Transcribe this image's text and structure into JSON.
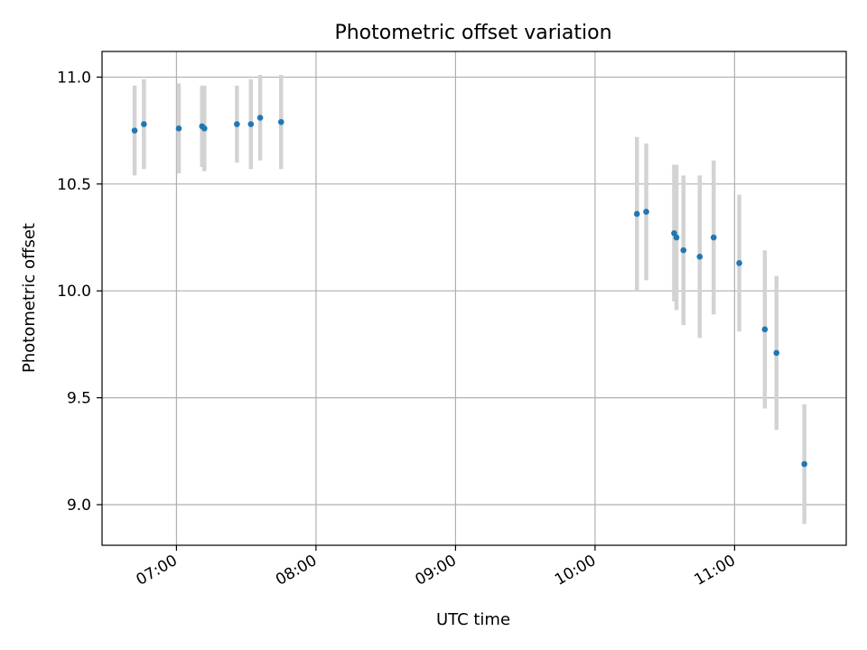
{
  "chart_data": {
    "type": "scatter",
    "title": "Photometric offset variation",
    "xlabel": "UTC time",
    "ylabel": "Photometric offset",
    "x_unit": "UTC time of day",
    "xlim": [
      "06:28",
      "11:48"
    ],
    "ylim": [
      8.81,
      11.12
    ],
    "grid": true,
    "x_ticks": [
      "07:00",
      "08:00",
      "09:00",
      "10:00",
      "11:00"
    ],
    "y_ticks": [
      "9.0",
      "9.5",
      "10.0",
      "10.5",
      "11.0"
    ],
    "y_tick_values": [
      9.0,
      9.5,
      10.0,
      10.5,
      11.0
    ],
    "colors": {
      "point": "#1f77b4",
      "errorbar": "#d3d3d3",
      "grid": "#b0b0b0"
    },
    "series": [
      {
        "points": [
          {
            "t": "06:42",
            "y": 10.75,
            "yerr": 0.21
          },
          {
            "t": "06:46",
            "y": 10.78,
            "yerr": 0.21
          },
          {
            "t": "07:01",
            "y": 10.76,
            "yerr": 0.21
          },
          {
            "t": "07:11",
            "y": 10.77,
            "yerr": 0.19
          },
          {
            "t": "07:12",
            "y": 10.76,
            "yerr": 0.2
          },
          {
            "t": "07:26",
            "y": 10.78,
            "yerr": 0.18
          },
          {
            "t": "07:32",
            "y": 10.78,
            "yerr": 0.21
          },
          {
            "t": "07:36",
            "y": 10.81,
            "yerr": 0.2
          },
          {
            "t": "07:45",
            "y": 10.79,
            "yerr": 0.22
          },
          {
            "t": "10:18",
            "y": 10.36,
            "yerr": 0.36
          },
          {
            "t": "10:22",
            "y": 10.37,
            "yerr": 0.32
          },
          {
            "t": "10:34",
            "y": 10.27,
            "yerr": 0.32
          },
          {
            "t": "10:35",
            "y": 10.25,
            "yerr": 0.34
          },
          {
            "t": "10:38",
            "y": 10.19,
            "yerr": 0.35
          },
          {
            "t": "10:45",
            "y": 10.16,
            "yerr": 0.38
          },
          {
            "t": "10:51",
            "y": 10.25,
            "yerr": 0.36
          },
          {
            "t": "11:02",
            "y": 10.13,
            "yerr": 0.32
          },
          {
            "t": "11:13",
            "y": 9.82,
            "yerr": 0.37
          },
          {
            "t": "11:18",
            "y": 9.71,
            "yerr": 0.36
          },
          {
            "t": "11:30",
            "y": 9.19,
            "yerr": 0.28
          }
        ]
      }
    ]
  }
}
